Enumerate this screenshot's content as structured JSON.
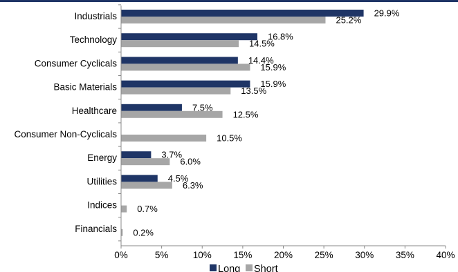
{
  "colors": {
    "long": "#1f3566",
    "short": "#a6a6a6",
    "axis": "#888888",
    "top_bar": "#1f3566"
  },
  "chart_data": {
    "type": "bar",
    "orientation": "horizontal",
    "title": "",
    "xlabel": "",
    "ylabel": "",
    "xlim": [
      0,
      40
    ],
    "x_ticks": [
      "0%",
      "5%",
      "10%",
      "15%",
      "20%",
      "25%",
      "30%",
      "35%",
      "40%"
    ],
    "x_tick_values": [
      0,
      5,
      10,
      15,
      20,
      25,
      30,
      35,
      40
    ],
    "grid": false,
    "legend_position": "bottom",
    "categories": [
      "Industrials",
      "Technology",
      "Consumer Cyclicals",
      "Basic Materials",
      "Healthcare",
      "Consumer Non-Cyclicals",
      "Energy",
      "Utilities",
      "Indices",
      "Financials"
    ],
    "series": [
      {
        "name": "Long",
        "values": [
          29.9,
          16.8,
          14.4,
          15.9,
          7.5,
          null,
          3.7,
          4.5,
          null,
          null
        ],
        "labels": [
          "29.9%",
          "16.8%",
          "14.4%",
          "15.9%",
          "7.5%",
          "",
          "3.7%",
          "4.5%",
          "",
          ""
        ]
      },
      {
        "name": "Short",
        "values": [
          25.2,
          14.5,
          15.9,
          13.5,
          12.5,
          10.5,
          6.0,
          6.3,
          0.7,
          0.2
        ],
        "labels": [
          "25.2%",
          "14.5%",
          "15.9%",
          "13.5%",
          "12.5%",
          "10.5%",
          "6.0%",
          "6.3%",
          "0.7%",
          "0.2%"
        ]
      }
    ]
  }
}
